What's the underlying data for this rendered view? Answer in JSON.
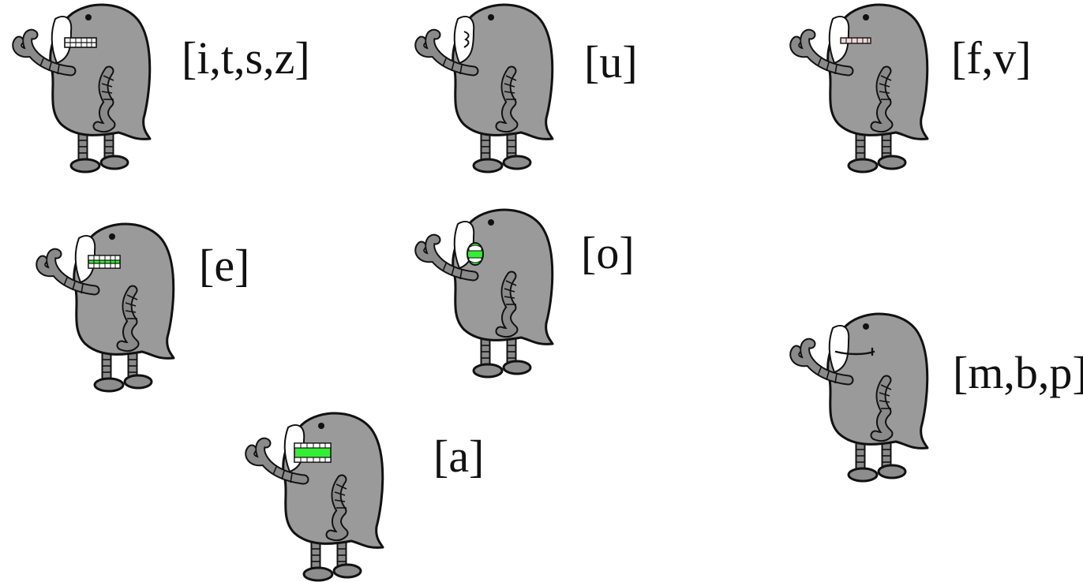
{
  "colors": {
    "body": "#9a9a9a",
    "outline": "#111111",
    "mouth_green": "#33ee33",
    "teeth": "#ffffff",
    "teeth_pink_tint": "#f2d8d8"
  },
  "visemes": [
    {
      "id": "itsz",
      "label": "[i,t,s,z]",
      "mouth": "teeth-closed"
    },
    {
      "id": "u",
      "label": "[u]",
      "mouth": "pucker"
    },
    {
      "id": "fv",
      "label": "[f,v]",
      "mouth": "lip-bite"
    },
    {
      "id": "e",
      "label": "[e]",
      "mouth": "teeth-slightly-open"
    },
    {
      "id": "o",
      "label": "[o]",
      "mouth": "round-open"
    },
    {
      "id": "mbp",
      "label": "[m,b,p]",
      "mouth": "closed-line"
    },
    {
      "id": "a",
      "label": "[a]",
      "mouth": "teeth-wide-open"
    }
  ]
}
